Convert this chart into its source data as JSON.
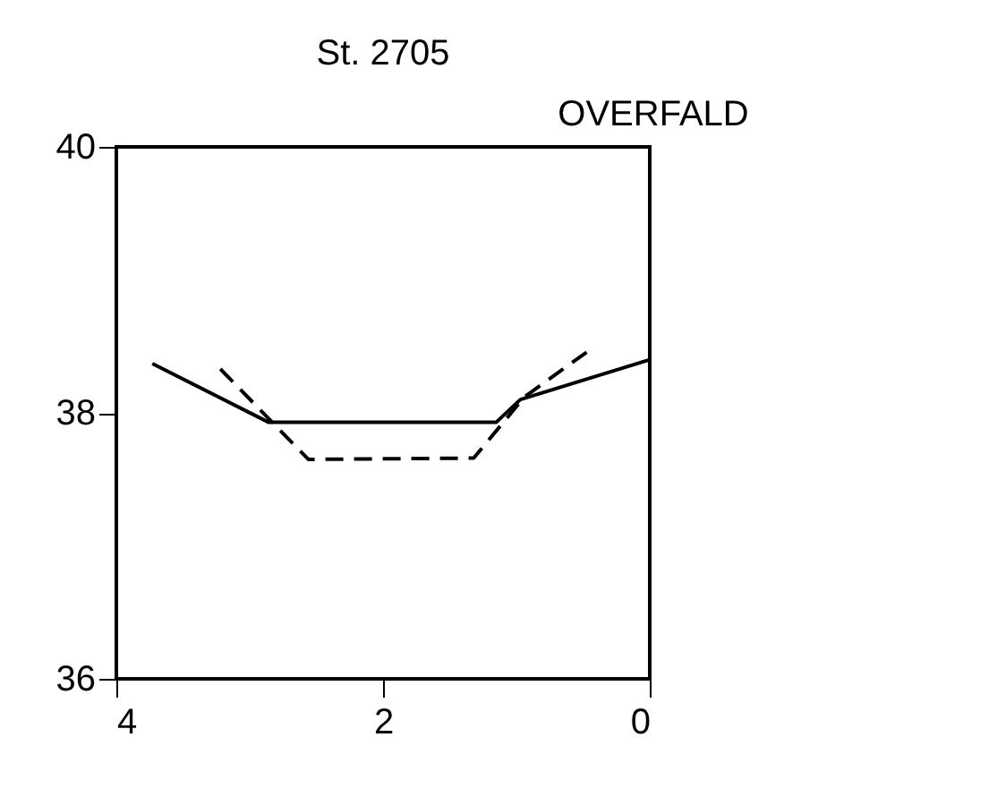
{
  "chart_data": {
    "type": "line",
    "title": "St.      2705",
    "annotations": [
      "OVERFALD"
    ],
    "xlim": [
      4,
      0
    ],
    "xticks": [
      4,
      2,
      0
    ],
    "ylim": [
      36,
      40
    ],
    "yticks": [
      36,
      38,
      40
    ],
    "grid": false,
    "marker": "none",
    "series": [
      {
        "color": "#000000",
        "line_style": "solid",
        "x": [
          3.73,
          2.86,
          1.15,
          0.97,
          0
        ],
        "values": [
          38.37,
          37.93,
          37.93,
          38.1,
          38.4
        ]
      },
      {
        "color": "#000000",
        "line_style": "dashed",
        "x": [
          3.22,
          2.56,
          1.32,
          0.94,
          0.44
        ],
        "values": [
          38.33,
          37.65,
          37.66,
          38.12,
          38.48
        ]
      }
    ]
  }
}
